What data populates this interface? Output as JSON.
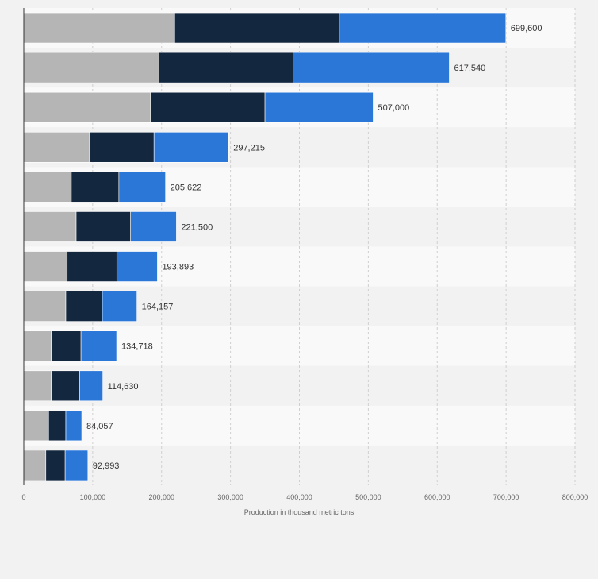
{
  "colors": {
    "page_background": "#f2f2f2",
    "plot_background": "#f9f9f9",
    "band_alternate": "#f2f2f2",
    "gridline": "#cfcfcf",
    "axis_line": "#333333",
    "tick_label": "#666666",
    "value_label": "#333333"
  },
  "chart_data": {
    "type": "bar",
    "orientation": "horizontal",
    "stacked": true,
    "categories": [
      "",
      "",
      "",
      "",
      "",
      "",
      "",
      "",
      "",
      "",
      "",
      ""
    ],
    "series": [
      {
        "color": "#b5b5b5",
        "values": [
          219000,
          196000,
          184000,
          95000,
          69000,
          76000,
          63000,
          61000,
          40000,
          40000,
          36000,
          32000
        ]
      },
      {
        "color": "#13273f",
        "values": [
          239000,
          195000,
          166000,
          94000,
          69000,
          79000,
          72000,
          53000,
          43000,
          41000,
          25000,
          28000
        ]
      },
      {
        "color": "#2a77d8",
        "values": [
          241600,
          226540,
          157000,
          108215,
          67622,
          66500,
          58893,
          50157,
          51718,
          33630,
          23057,
          32993
        ]
      }
    ],
    "totals": [
      699600,
      617540,
      507000,
      297215,
      205622,
      221500,
      193893,
      164157,
      134718,
      114630,
      84057,
      92993
    ],
    "value_labels": [
      "699,600",
      "617,540",
      "507,000",
      "297,215",
      "205,622",
      "221,500",
      "193,893",
      "164,157",
      "134,718",
      "114,630",
      "84,057",
      "92,993"
    ],
    "xlabel": "Production in thousand metric tons",
    "ylabel": "",
    "xlim": [
      0,
      800000
    ],
    "xticks": [
      0,
      100000,
      200000,
      300000,
      400000,
      500000,
      600000,
      700000,
      800000
    ],
    "xtick_labels": [
      "0",
      "100,000",
      "200,000",
      "300,000",
      "400,000",
      "500,000",
      "600,000",
      "700,000",
      "800,000"
    ],
    "grid": true,
    "legend": "none"
  }
}
